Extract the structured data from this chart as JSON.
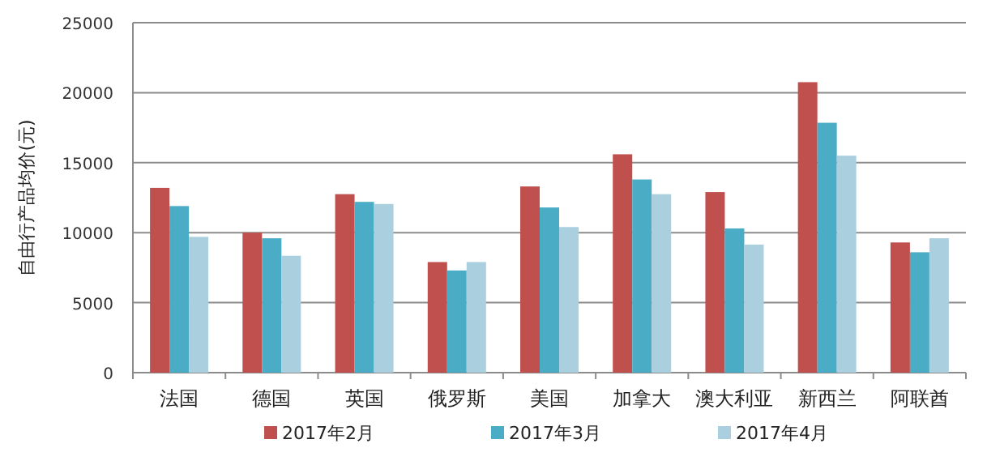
{
  "chart_data": {
    "type": "bar",
    "ylabel": "自由行产品均价(元)",
    "categories": [
      "法国",
      "德国",
      "英国",
      "俄罗斯",
      "美国",
      "加拿大",
      "澳大利亚",
      "新西兰",
      "阿联酋"
    ],
    "series": [
      {
        "name": "2017年2月",
        "color": "#c0504d",
        "values": [
          13200,
          10000,
          12750,
          7900,
          13300,
          15600,
          12900,
          20750,
          9300
        ]
      },
      {
        "name": "2017年3月",
        "color": "#4bacc6",
        "values": [
          11900,
          9600,
          12200,
          7300,
          11800,
          13800,
          10300,
          17850,
          8600
        ]
      },
      {
        "name": "2017年4月",
        "color": "#aacfde",
        "values": [
          9700,
          8350,
          12050,
          7900,
          10400,
          12750,
          9150,
          15500,
          9600
        ]
      }
    ],
    "ylim": [
      0,
      25000
    ],
    "yticks": [
      0,
      5000,
      10000,
      15000,
      20000,
      25000
    ],
    "grid": "y",
    "legend": "bottom"
  }
}
